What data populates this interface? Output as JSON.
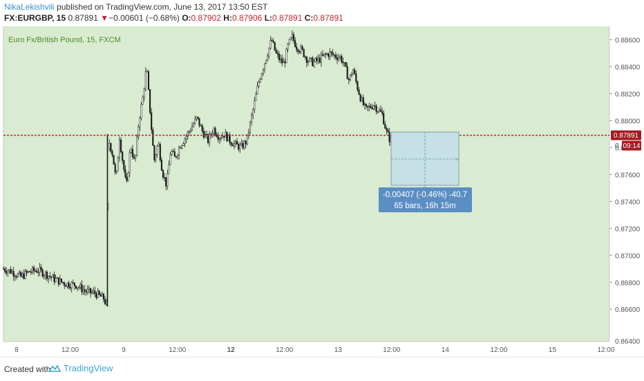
{
  "header": {
    "author": "NikaLekishvili",
    "published": "published on TradingView.com, June 13, 2017 13:50 EST",
    "symbol": "FX:EURGBP, 15",
    "last": "0.87891",
    "arrow": "▼",
    "change": "−0.00601 (−0.68%)",
    "o_label": "O:",
    "o": "0.87902",
    "h_label": "H:",
    "h": "0.87906",
    "l_label": "L:",
    "l": "0.87891",
    "c_label": "C:",
    "c": "0.87891"
  },
  "footer": {
    "created": "Created with",
    "brand": "TradingView"
  },
  "measure": {
    "line1": "-0.00407 (-0.46%) -40.7",
    "line2": "65 bars, 16h 15m"
  },
  "price_tag": {
    "price": "0.87891",
    "timer": "09:14",
    "price_text_left": "0"
  },
  "colors": {
    "background": "#d9ebd0",
    "candle": "#1a1a1a",
    "price_line": "#c0262b",
    "tag": "#a31b1f",
    "measure_box": "#c5e0e6",
    "measure_label": "#5b8ec2",
    "brand": "#3aa4d8"
  },
  "chart_data": {
    "type": "candlestick",
    "title": "Euro Fx/British Pound, 15, FXCM",
    "ylim": [
      0.8636,
      0.887
    ],
    "y_ticks": [
      "0.86600",
      "0.86800",
      "0.87000",
      "0.87200",
      "0.87400",
      "0.87600",
      "0.87800",
      "0.88000",
      "0.88200",
      "0.88400",
      "0.88600"
    ],
    "y_tick_values": [
      0.866,
      0.868,
      0.87,
      0.872,
      0.874,
      0.876,
      0.878,
      0.88,
      0.882,
      0.884,
      0.886
    ],
    "y_bottom_partial": "0.86400",
    "x_ticks": [
      {
        "label": "8",
        "bold": false
      },
      {
        "label": "12:00",
        "bold": false
      },
      {
        "label": "9",
        "bold": false
      },
      {
        "label": "12:00",
        "bold": false
      },
      {
        "label": "12",
        "bold": true
      },
      {
        "label": "12:00",
        "bold": false
      },
      {
        "label": "13",
        "bold": false
      },
      {
        "label": "12:00",
        "bold": false
      },
      {
        "label": "14",
        "bold": false
      },
      {
        "label": "12:00",
        "bold": false
      },
      {
        "label": "15",
        "bold": false
      },
      {
        "label": "12:00",
        "bold": false
      }
    ],
    "current_price": 0.87891,
    "series": [
      {
        "price_path": [
          [
            0,
            0.869
          ],
          [
            12,
            0.8688
          ],
          [
            25,
            0.8684
          ],
          [
            38,
            0.8688
          ],
          [
            50,
            0.8689
          ],
          [
            62,
            0.8686
          ],
          [
            75,
            0.8682
          ],
          [
            90,
            0.8679
          ],
          [
            105,
            0.8678
          ],
          [
            120,
            0.8673
          ],
          [
            132,
            0.8672
          ],
          [
            145,
            0.8668
          ],
          [
            150,
            0.8662
          ],
          [
            152,
            0.8786
          ],
          [
            158,
            0.8775
          ],
          [
            163,
            0.8755
          ],
          [
            168,
            0.8788
          ],
          [
            172,
            0.8772
          ],
          [
            178,
            0.875
          ],
          [
            184,
            0.8782
          ],
          [
            190,
            0.8768
          ],
          [
            196,
            0.88
          ],
          [
            202,
            0.8818
          ],
          [
            207,
            0.884
          ],
          [
            212,
            0.8808
          ],
          [
            218,
            0.877
          ],
          [
            224,
            0.8784
          ],
          [
            230,
            0.8762
          ],
          [
            236,
            0.8752
          ],
          [
            242,
            0.8778
          ],
          [
            248,
            0.8772
          ],
          [
            256,
            0.8782
          ],
          [
            264,
            0.8788
          ],
          [
            272,
            0.8795
          ],
          [
            280,
            0.8802
          ],
          [
            288,
            0.8792
          ],
          [
            296,
            0.8785
          ],
          [
            304,
            0.8794
          ],
          [
            312,
            0.8788
          ],
          [
            320,
            0.879
          ],
          [
            328,
            0.8785
          ],
          [
            336,
            0.8782
          ],
          [
            344,
            0.878
          ],
          [
            352,
            0.8785
          ],
          [
            358,
            0.88
          ],
          [
            364,
            0.8815
          ],
          [
            370,
            0.883
          ],
          [
            376,
            0.884
          ],
          [
            382,
            0.885
          ],
          [
            388,
            0.886
          ],
          [
            394,
            0.885
          ],
          [
            400,
            0.8845
          ],
          [
            406,
            0.8842
          ],
          [
            412,
            0.8856
          ],
          [
            418,
            0.8862
          ],
          [
            424,
            0.8855
          ],
          [
            432,
            0.8852
          ],
          [
            440,
            0.8845
          ],
          [
            448,
            0.8843
          ],
          [
            456,
            0.8845
          ],
          [
            464,
            0.8848
          ],
          [
            472,
            0.885
          ],
          [
            480,
            0.8848
          ],
          [
            488,
            0.8847
          ],
          [
            494,
            0.884
          ],
          [
            500,
            0.883
          ],
          [
            506,
            0.8838
          ],
          [
            512,
            0.8825
          ],
          [
            518,
            0.8815
          ],
          [
            524,
            0.8808
          ],
          [
            530,
            0.881
          ],
          [
            536,
            0.8812
          ],
          [
            542,
            0.8808
          ],
          [
            548,
            0.8805
          ],
          [
            554,
            0.8792
          ],
          [
            560,
            0.8785
          ],
          [
            566,
            0.8789
          ],
          [
            571,
            0.8789
          ]
        ]
      }
    ]
  }
}
